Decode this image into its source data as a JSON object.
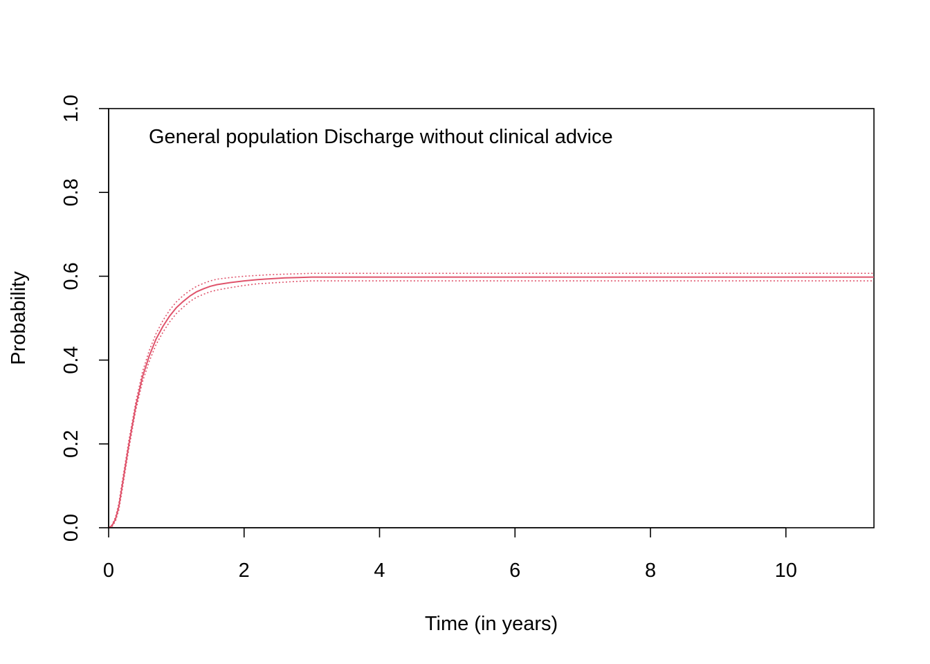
{
  "chart_data": {
    "type": "line",
    "title": "",
    "annotation": "General population Discharge without clinical advice",
    "xlabel": "Time (in years)",
    "ylabel": "Probability",
    "xlim": [
      0,
      11.3
    ],
    "ylim": [
      0,
      1
    ],
    "x_ticks": [
      0,
      2,
      4,
      6,
      8,
      10
    ],
    "x_tick_labels": [
      "0",
      "2",
      "4",
      "6",
      "8",
      "10"
    ],
    "y_ticks": [
      0,
      0.2,
      0.4,
      0.6,
      0.8,
      1
    ],
    "y_tick_labels": [
      "0.0",
      "0.2",
      "0.4",
      "0.6",
      "0.8",
      "1.0"
    ],
    "grid": false,
    "colors": {
      "series": "#DF536B",
      "axis": "#000000"
    },
    "series": [
      {
        "style": "solid",
        "x": [
          0,
          0.05,
          0.1,
          0.15,
          0.2,
          0.3,
          0.4,
          0.5,
          0.6,
          0.7,
          0.8,
          0.9,
          1.0,
          1.1,
          1.2,
          1.3,
          1.4,
          1.5,
          1.6,
          1.8,
          2.0,
          2.2,
          2.4,
          2.6,
          2.8,
          3.0,
          4.0,
          6.0,
          8.0,
          10.0,
          11.3
        ],
        "y": [
          0,
          0.005,
          0.02,
          0.05,
          0.1,
          0.2,
          0.29,
          0.36,
          0.41,
          0.45,
          0.48,
          0.505,
          0.525,
          0.54,
          0.553,
          0.563,
          0.57,
          0.576,
          0.58,
          0.585,
          0.589,
          0.592,
          0.594,
          0.596,
          0.597,
          0.598,
          0.598,
          0.598,
          0.598,
          0.598,
          0.598
        ]
      },
      {
        "style": "dotted",
        "x": [
          0,
          0.05,
          0.1,
          0.15,
          0.2,
          0.3,
          0.4,
          0.5,
          0.6,
          0.7,
          0.8,
          0.9,
          1.0,
          1.1,
          1.2,
          1.3,
          1.4,
          1.5,
          1.6,
          1.8,
          2.0,
          2.2,
          2.4,
          2.6,
          2.8,
          3.0,
          4.0,
          6.0,
          8.0,
          10.0,
          11.3
        ],
        "y": [
          0,
          0.007,
          0.025,
          0.058,
          0.11,
          0.21,
          0.3,
          0.372,
          0.423,
          0.463,
          0.494,
          0.519,
          0.539,
          0.554,
          0.566,
          0.576,
          0.583,
          0.589,
          0.593,
          0.597,
          0.6,
          0.602,
          0.604,
          0.605,
          0.606,
          0.607,
          0.607,
          0.607,
          0.607,
          0.607,
          0.607
        ]
      },
      {
        "style": "dotted",
        "x": [
          0,
          0.05,
          0.1,
          0.15,
          0.2,
          0.3,
          0.4,
          0.5,
          0.6,
          0.7,
          0.8,
          0.9,
          1.0,
          1.1,
          1.2,
          1.3,
          1.4,
          1.5,
          1.6,
          1.8,
          2.0,
          2.2,
          2.4,
          2.6,
          2.8,
          3.0,
          4.0,
          6.0,
          8.0,
          10.0,
          11.3
        ],
        "y": [
          0,
          0.003,
          0.015,
          0.042,
          0.09,
          0.19,
          0.28,
          0.348,
          0.397,
          0.437,
          0.466,
          0.491,
          0.511,
          0.526,
          0.54,
          0.55,
          0.557,
          0.563,
          0.567,
          0.573,
          0.578,
          0.582,
          0.584,
          0.586,
          0.588,
          0.589,
          0.589,
          0.589,
          0.589,
          0.589,
          0.589
        ]
      }
    ]
  }
}
